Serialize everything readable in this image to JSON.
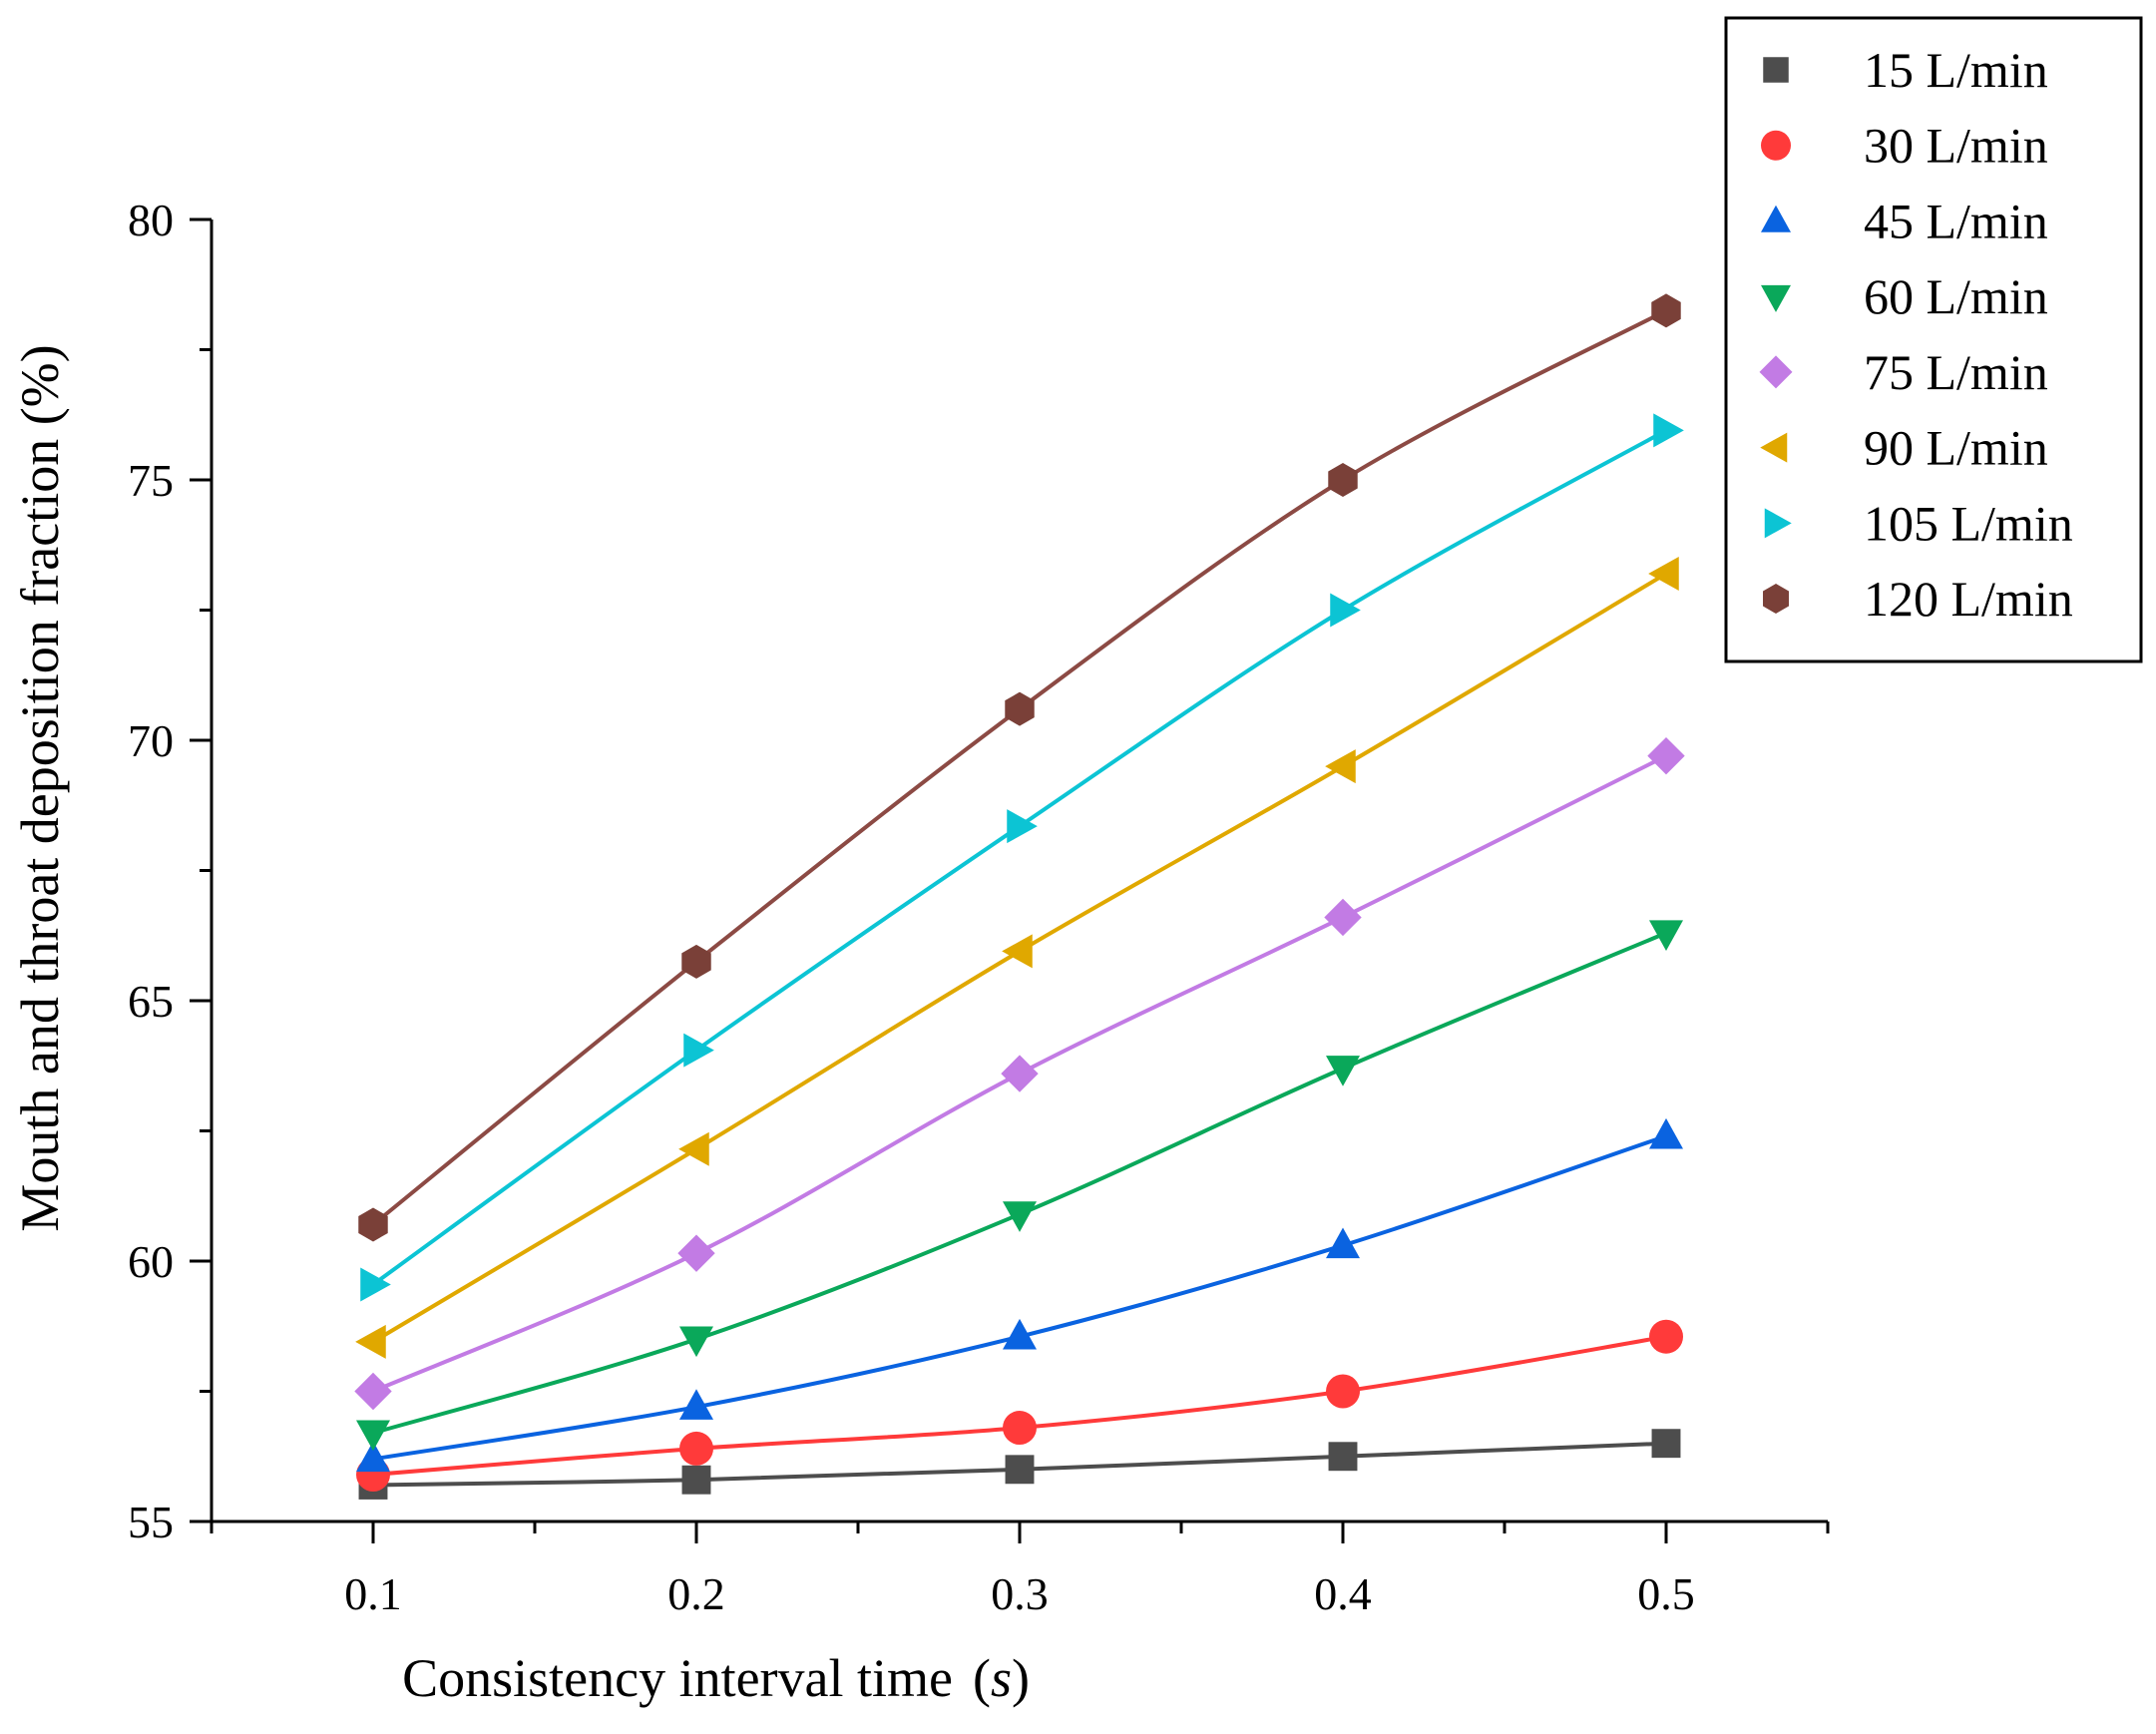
{
  "chart_data": {
    "type": "line",
    "title": "",
    "xlabel": "Consistency interval time",
    "xlabel_unit": "s",
    "ylabel": "Mouth and throat deposition fraction (%)",
    "x": [
      0.1,
      0.2,
      0.3,
      0.4,
      0.5
    ],
    "x_ticks": [
      "0.1",
      "0.2",
      "0.3",
      "0.4",
      "0.5"
    ],
    "y_ticks": [
      "55",
      "60",
      "65",
      "70",
      "75",
      "80"
    ],
    "xlim": [
      0.05,
      0.55
    ],
    "ylim": [
      55,
      80
    ],
    "grid": false,
    "legend_position": "top-right",
    "series": [
      {
        "name": "15 L/min",
        "marker": "square",
        "color": "#4d4d4d",
        "line_color": "#4d4d4d",
        "values": [
          55.7,
          55.8,
          56.0,
          56.25,
          56.5
        ]
      },
      {
        "name": "30 L/min",
        "marker": "circle",
        "color": "#ff3a3a",
        "line_color": "#ff3a3a",
        "values": [
          55.9,
          56.4,
          56.8,
          57.5,
          58.55
        ]
      },
      {
        "name": "45 L/min",
        "marker": "triangle-up",
        "color": "#0a63e0",
        "line_color": "#0a63e0",
        "values": [
          56.2,
          57.2,
          58.55,
          60.3,
          62.4
        ]
      },
      {
        "name": "60 L/min",
        "marker": "triangle-down",
        "color": "#0aa85a",
        "line_color": "#0aa85a",
        "values": [
          56.7,
          58.5,
          60.9,
          63.7,
          66.3
        ]
      },
      {
        "name": "75 L/min",
        "marker": "diamond",
        "color": "#c27be4",
        "line_color": "#c27be4",
        "values": [
          57.5,
          60.15,
          63.6,
          66.6,
          69.7
        ]
      },
      {
        "name": "90 L/min",
        "marker": "triangle-left",
        "color": "#e0a800",
        "line_color": "#e0a800",
        "values": [
          58.45,
          62.15,
          65.95,
          69.5,
          73.2
        ]
      },
      {
        "name": "105 L/min",
        "marker": "triangle-right",
        "color": "#0cc4d4",
        "line_color": "#0cc4d4",
        "values": [
          59.55,
          64.05,
          68.35,
          72.5,
          75.95
        ]
      },
      {
        "name": "120 L/min",
        "marker": "hexagon",
        "color": "#7a4038",
        "line_color": "#8c4a44",
        "values": [
          60.7,
          65.75,
          70.6,
          75.0,
          78.25
        ]
      }
    ]
  }
}
